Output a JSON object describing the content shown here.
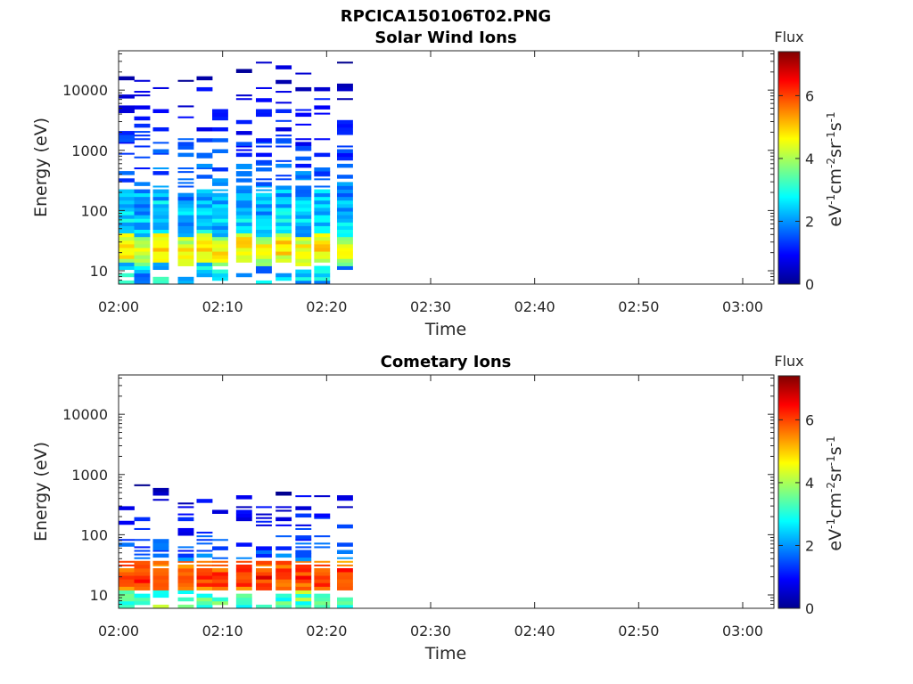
{
  "figure_title": "RPCICA150106T02.PNG",
  "colors": {
    "jet": [
      "#00008f",
      "#0000ff",
      "#0080ff",
      "#00ffff",
      "#80ff80",
      "#ffff00",
      "#ff8000",
      "#ff0000",
      "#800000"
    ]
  },
  "chart_data": [
    {
      "type": "heatmap",
      "title": "Solar Wind Ions",
      "xlabel": "Time",
      "ylabel": "Energy (eV)",
      "x_ticks": [
        "02:00",
        "02:10",
        "02:20",
        "02:30",
        "02:40",
        "02:50",
        "03:00"
      ],
      "xlim_minutes": [
        0,
        63
      ],
      "y_scale": "log",
      "y_ticks": [
        "10",
        "100",
        "1000",
        "10000"
      ],
      "ylim": [
        6,
        45000
      ],
      "colorbar": {
        "title": "Flux",
        "unit_label": "eV-1cm-2sr-1s-1",
        "ticks": [
          "0",
          "2",
          "4",
          "6"
        ],
        "range": [
          0,
          7.4
        ]
      },
      "time_columns": [
        0,
        1.5,
        3.3,
        5.7,
        7.5,
        9.0,
        11.3,
        13.2,
        15.1,
        17.0,
        18.8,
        21.0
      ],
      "column_width_minutes": 1.5,
      "profiles": [
        {
          "min_e": 60,
          "max_e": 30000,
          "level": 2.8,
          "peak_e": 25,
          "peak_level": 5.0
        },
        {
          "min_e": 50,
          "max_e": 28000,
          "level": 2.6,
          "peak_e": 22,
          "peak_level": 4.7
        }
      ]
    },
    {
      "type": "heatmap",
      "title": "Cometary Ions",
      "xlabel": "Time",
      "ylabel": "Energy (eV)",
      "x_ticks": [
        "02:00",
        "02:10",
        "02:20",
        "02:30",
        "02:40",
        "02:50",
        "03:00"
      ],
      "xlim_minutes": [
        0,
        63
      ],
      "y_scale": "log",
      "y_ticks": [
        "10",
        "100",
        "1000",
        "10000"
      ],
      "ylim": [
        6,
        45000
      ],
      "colorbar": {
        "title": "Flux",
        "unit_label": "eV-1cm-2sr-1s-1",
        "ticks": [
          "0",
          "2",
          "4",
          "6"
        ],
        "range": [
          0,
          7.4
        ]
      },
      "time_columns": [
        0,
        1.5,
        3.3,
        5.7,
        7.5,
        9.0,
        11.3,
        13.2,
        15.1,
        17.0,
        18.8,
        21.0
      ],
      "column_width_minutes": 1.5,
      "profiles": [
        {
          "min_e": 7,
          "max_e": 700,
          "level": 3.8,
          "peak_e": 20,
          "peak_level": 6.3
        }
      ]
    }
  ]
}
